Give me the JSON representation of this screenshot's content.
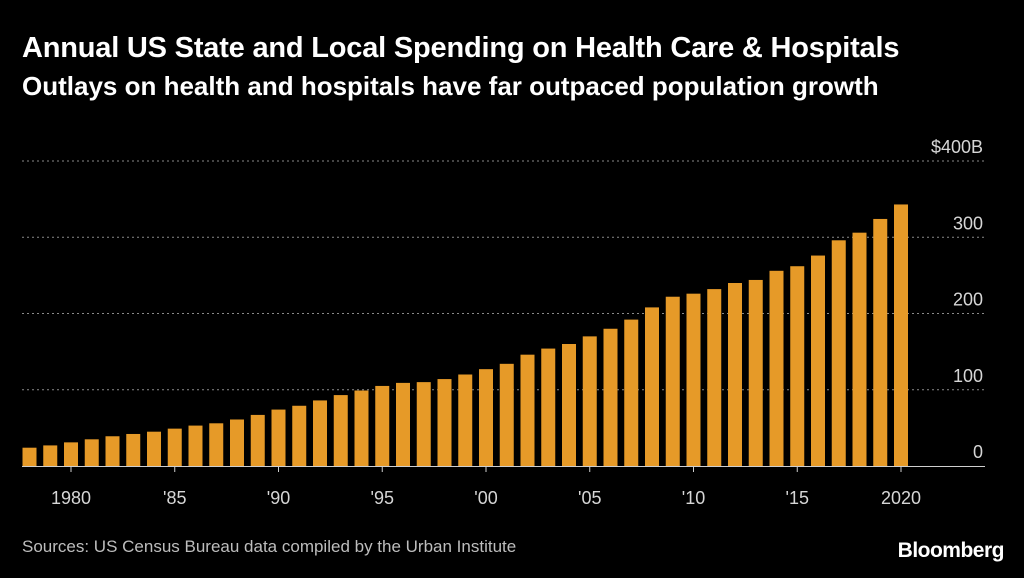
{
  "header": {
    "title": "Annual US State and Local Spending on Health Care & Hospitals",
    "subtitle": "Outlays on health and hospitals have far outpaced population growth"
  },
  "footer": {
    "source": "Sources: US Census Bureau data compiled by the Urban Institute",
    "brand": "Bloomberg"
  },
  "colors": {
    "bar": "#e69a28",
    "background": "#000000",
    "grid": "#8a8a8a"
  },
  "chart_data": {
    "type": "bar",
    "title": "Annual US State and Local Spending on Health Care & Hospitals",
    "subtitle": "Outlays on health and hospitals have far outpaced population growth",
    "xlabel": "",
    "ylabel": "",
    "ylim": [
      0,
      400
    ],
    "grid": true,
    "legend": "none",
    "y_ticks": [
      {
        "value": 0,
        "label": "0"
      },
      {
        "value": 100,
        "label": "100"
      },
      {
        "value": 200,
        "label": "200"
      },
      {
        "value": 300,
        "label": "300"
      },
      {
        "value": 400,
        "label": "$400B"
      }
    ],
    "x_ticks": [
      {
        "year": 1980,
        "label": "1980"
      },
      {
        "year": 1985,
        "label": "'85"
      },
      {
        "year": 1990,
        "label": "'90"
      },
      {
        "year": 1995,
        "label": "'95"
      },
      {
        "year": 2000,
        "label": "'00"
      },
      {
        "year": 2005,
        "label": "'05"
      },
      {
        "year": 2010,
        "label": "'10"
      },
      {
        "year": 2015,
        "label": "'15"
      },
      {
        "year": 2020,
        "label": "2020"
      }
    ],
    "categories": [
      1978,
      1979,
      1980,
      1981,
      1982,
      1983,
      1984,
      1985,
      1986,
      1987,
      1988,
      1989,
      1990,
      1991,
      1992,
      1993,
      1994,
      1995,
      1996,
      1997,
      1998,
      1999,
      2000,
      2001,
      2002,
      2003,
      2004,
      2005,
      2006,
      2007,
      2008,
      2009,
      2010,
      2011,
      2012,
      2013,
      2014,
      2015,
      2016,
      2017,
      2018,
      2019,
      2020
    ],
    "series": [
      {
        "values": [
          24,
          27,
          31,
          35,
          39,
          42,
          45,
          49,
          53,
          56,
          61,
          67,
          74,
          79,
          86,
          93,
          99,
          105,
          109,
          110,
          114,
          120,
          127,
          134,
          146,
          154,
          160,
          170,
          180,
          192,
          208,
          222,
          226,
          232,
          240,
          244,
          256,
          262,
          276,
          296,
          306,
          324,
          343
        ]
      }
    ]
  }
}
